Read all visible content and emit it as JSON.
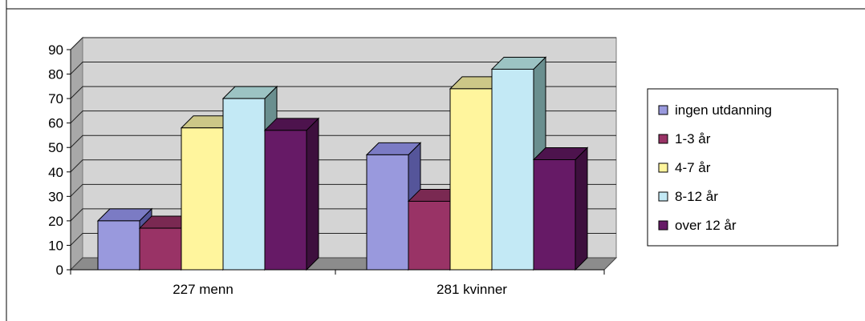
{
  "chart_data": {
    "type": "bar",
    "categories": [
      "227 menn",
      "281 kvinner"
    ],
    "series": [
      {
        "name": "ingen utdanning",
        "values": [
          20,
          47
        ],
        "color": "#9999dd",
        "side": "#55559a",
        "top": "#7b7bc4"
      },
      {
        "name": "1-3 år",
        "values": [
          17,
          28
        ],
        "color": "#993366",
        "side": "#5c1f3d",
        "top": "#7a2952"
      },
      {
        "name": "4-7 år",
        "values": [
          58,
          74
        ],
        "color": "#fff59d",
        "side": "#a8a060",
        "top": "#ccc787"
      },
      {
        "name": "8-12 år",
        "values": [
          70,
          82
        ],
        "color": "#c3e9f5",
        "side": "#6a8f8f",
        "top": "#9cc3c3"
      },
      {
        "name": "over 12 år",
        "values": [
          57,
          45
        ],
        "color": "#661a66",
        "side": "#3d0f3d",
        "top": "#4d134d"
      }
    ],
    "y_ticks": [
      0,
      10,
      20,
      30,
      40,
      50,
      60,
      70,
      80,
      90
    ],
    "ylim": [
      0,
      90
    ],
    "grid": true,
    "legend": "right",
    "wall_color": "#d4d4d4",
    "floor_color": "#8c8c8c"
  }
}
